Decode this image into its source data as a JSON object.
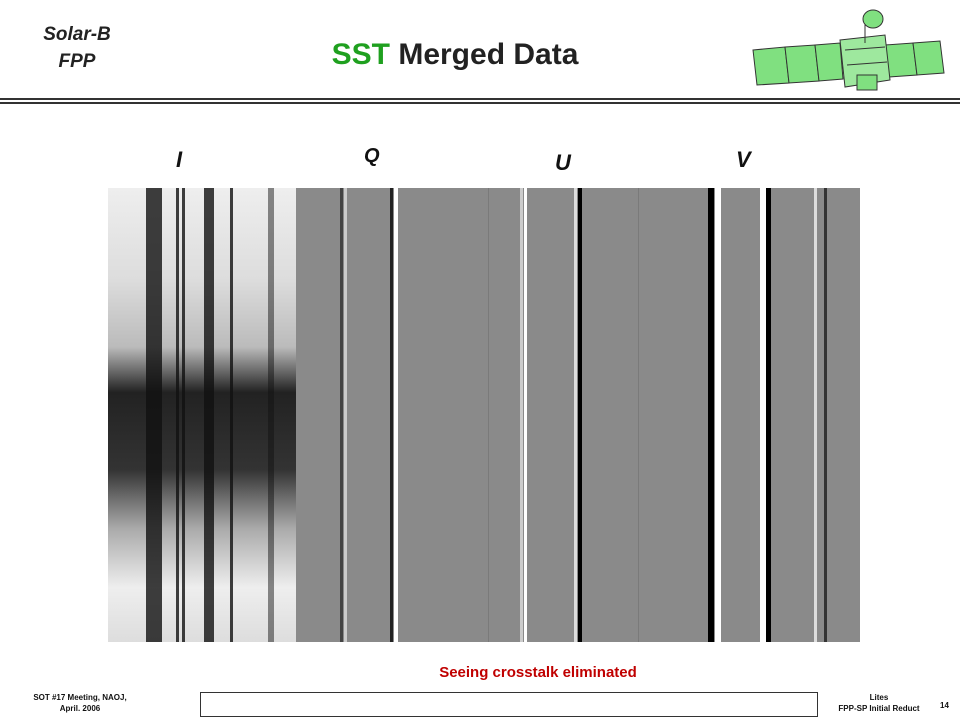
{
  "header": {
    "org": [
      "Solar-B",
      "FPP"
    ],
    "title_accent": "SST",
    "title_rest": "Merged Data"
  },
  "panel_labels": [
    "I",
    "Q",
    "U",
    "V"
  ],
  "caption": "Seeing crosstalk eliminated",
  "footer": {
    "left": [
      "SOT #17 Meeting, NAOJ,",
      "April. 2006"
    ],
    "right": [
      "Lites",
      "FPP-SP Initial Reduct"
    ],
    "page": "14"
  }
}
